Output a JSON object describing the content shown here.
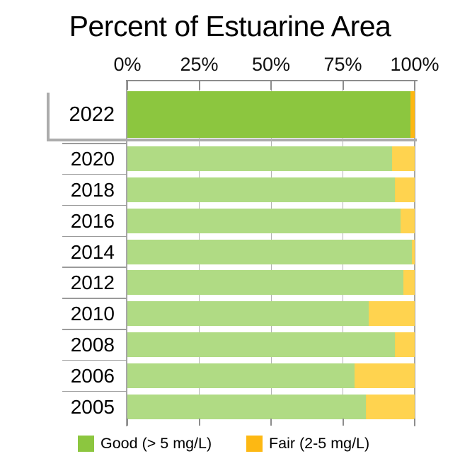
{
  "title": "Percent of Estuarine Area",
  "colors": {
    "good_current": "#8CC63F",
    "fair_current": "#FDB813",
    "good_past": "#B0DB84",
    "fair_past": "#FFD34F",
    "axis_gray": "#8C8C8C",
    "grid_gray": "#B3B3B3",
    "bracket_gray": "#ACACAC"
  },
  "chart_data": {
    "type": "bar",
    "orientation": "horizontal-stacked",
    "title": "Percent of Estuarine Area",
    "x_tick_labels": [
      "0%",
      "25%",
      "50%",
      "75%",
      "100%"
    ],
    "x_tick_values": [
      0,
      25,
      50,
      75,
      100
    ],
    "xlim": [
      0,
      100
    ],
    "grid": true,
    "categories": [
      "2022",
      "2020",
      "2018",
      "2016",
      "2014",
      "2012",
      "2010",
      "2008",
      "2006",
      "2005"
    ],
    "series": [
      {
        "name": "Good (> 5 mg/L)",
        "values": [
          98.5,
          92,
          93,
          95,
          99,
          96,
          84,
          93,
          79,
          83
        ]
      },
      {
        "name": "Fair (2-5 mg/L)",
        "values": [
          1.5,
          8,
          7,
          5,
          1,
          4,
          16,
          7,
          21,
          17
        ]
      }
    ],
    "highlighted_category": "2022",
    "legend": [
      {
        "label": "Good (> 5 mg/L)",
        "color": "#8CC63F"
      },
      {
        "label": "Fair (2-5 mg/L)",
        "color": "#FDB813"
      }
    ],
    "legend_position": "bottom"
  }
}
